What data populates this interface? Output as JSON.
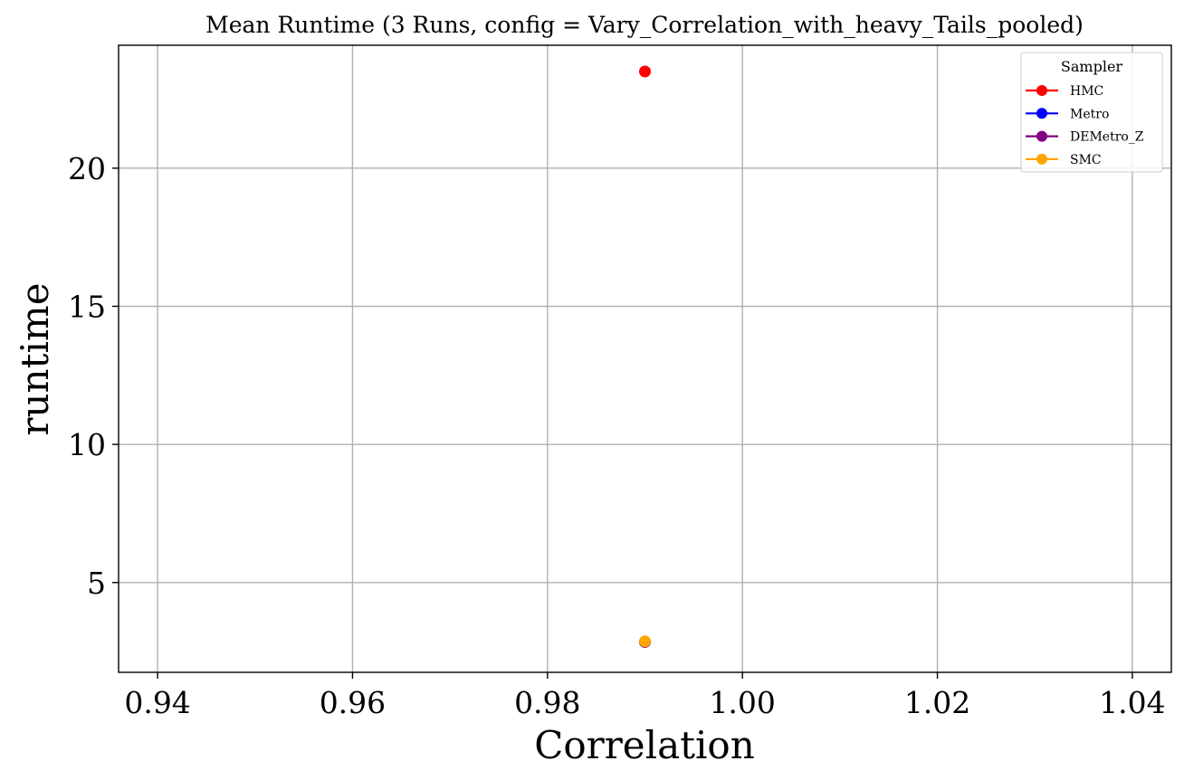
{
  "chart_data": {
    "type": "scatter",
    "title": "Mean Runtime (3 Runs, config = Vary_Correlation_with_heavy_Tails_pooled)",
    "xlabel": "Correlation",
    "ylabel": "runtime",
    "xlim": [
      0.936,
      1.044
    ],
    "ylim": [
      1.75,
      24.45
    ],
    "xticks": [
      0.94,
      0.96,
      0.98,
      1.0,
      1.02,
      1.04
    ],
    "xtick_labels": [
      "0.94",
      "0.96",
      "0.98",
      "1.00",
      "1.02",
      "1.04"
    ],
    "yticks": [
      5,
      10,
      15,
      20
    ],
    "ytick_labels": [
      "5",
      "10",
      "15",
      "20"
    ],
    "grid": true,
    "legend": {
      "title": "Sampler",
      "placement": "top-right"
    },
    "series": [
      {
        "name": "HMC",
        "color": "#ff0000",
        "x": [
          0.99
        ],
        "y": [
          23.5
        ]
      },
      {
        "name": "Metro",
        "color": "#0000ff",
        "x": [
          0.99
        ],
        "y": [
          2.85
        ]
      },
      {
        "name": "DEMetro_Z",
        "color": "#800080",
        "x": [
          0.99
        ],
        "y": [
          2.85
        ]
      },
      {
        "name": "SMC",
        "color": "#ffa500",
        "x": [
          0.99
        ],
        "y": [
          2.87
        ]
      }
    ]
  }
}
